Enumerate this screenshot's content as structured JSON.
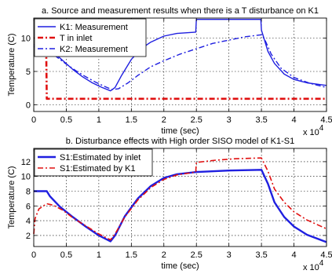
{
  "colors": {
    "blue": "#1f1fe0",
    "red": "#e01010",
    "grid": "#000000",
    "background": "#ffffff"
  },
  "chart_data": [
    {
      "type": "line",
      "title": "a. Source and measurement results when there is a T disturbance on K1",
      "xlabel": "time (sec)",
      "ylabel": "Temperature (C)",
      "x_multiplier_label": "x 10",
      "x_multiplier_exp": "4",
      "xlim": [
        0,
        4.5
      ],
      "ylim": [
        -1,
        13
      ],
      "xticks": [
        0,
        0.5,
        1,
        1.5,
        2,
        2.5,
        3,
        3.5,
        4,
        4.5
      ],
      "yticks": [
        0,
        5,
        10
      ],
      "grid": true,
      "legend": "top-left",
      "series": [
        {
          "name": "K1: Measurement",
          "color": "#1f1fe0",
          "style": "solid",
          "width": 1.4,
          "points": [
            [
              0,
              8.7
            ],
            [
              0.05,
              8.6
            ],
            [
              0.2,
              8.5
            ],
            [
              0.3,
              7.9
            ],
            [
              0.45,
              6.6
            ],
            [
              0.6,
              5.3
            ],
            [
              0.75,
              4.2
            ],
            [
              0.9,
              3.3
            ],
            [
              1.05,
              2.6
            ],
            [
              1.18,
              2.1
            ],
            [
              1.25,
              2.6
            ],
            [
              1.35,
              4.4
            ],
            [
              1.5,
              6.8
            ],
            [
              1.65,
              8.4
            ],
            [
              1.8,
              9.4
            ],
            [
              2.0,
              10.3
            ],
            [
              2.2,
              10.7
            ],
            [
              2.49,
              10.9
            ],
            [
              2.5,
              12.8
            ],
            [
              3.0,
              12.8
            ],
            [
              3.49,
              12.8
            ],
            [
              3.5,
              11.2
            ],
            [
              3.6,
              8.0
            ],
            [
              3.7,
              6.2
            ],
            [
              3.85,
              4.6
            ],
            [
              4.0,
              3.8
            ],
            [
              4.2,
              3.3
            ],
            [
              4.5,
              2.9
            ]
          ]
        },
        {
          "name": "T in inlet",
          "color": "#e01010",
          "style": "dashdot",
          "width": 2.6,
          "points": [
            [
              0,
              10
            ],
            [
              0.19,
              10
            ],
            [
              0.2,
              0.9
            ],
            [
              4.5,
              0.9
            ]
          ]
        },
        {
          "name": "K2: Measurement",
          "color": "#1f1fe0",
          "style": "dashdot",
          "width": 1.4,
          "points": [
            [
              0,
              9.0
            ],
            [
              0.1,
              8.8
            ],
            [
              0.2,
              8.3
            ],
            [
              0.35,
              7.2
            ],
            [
              0.5,
              6.1
            ],
            [
              0.65,
              5.1
            ],
            [
              0.8,
              4.2
            ],
            [
              0.95,
              3.4
            ],
            [
              1.1,
              2.7
            ],
            [
              1.2,
              2.3
            ],
            [
              1.3,
              2.4
            ],
            [
              1.45,
              3.3
            ],
            [
              1.6,
              4.4
            ],
            [
              1.8,
              5.7
            ],
            [
              2.0,
              6.6
            ],
            [
              2.25,
              7.6
            ],
            [
              2.5,
              8.4
            ],
            [
              2.75,
              9.2
            ],
            [
              3.0,
              9.7
            ],
            [
              3.25,
              10.2
            ],
            [
              3.5,
              10.5
            ],
            [
              3.55,
              9.8
            ],
            [
              3.65,
              7.6
            ],
            [
              3.8,
              5.5
            ],
            [
              4.0,
              4.1
            ],
            [
              4.25,
              3.2
            ],
            [
              4.5,
              2.6
            ]
          ]
        }
      ]
    },
    {
      "type": "line",
      "title": "b. Disturbance effects with High order SISO model of K1-S1",
      "xlabel": "time (sec)",
      "ylabel": "Temperature (C)",
      "x_multiplier_label": "x 10",
      "x_multiplier_exp": "4",
      "xlim": [
        0,
        4.5
      ],
      "ylim": [
        0.5,
        13.8
      ],
      "xticks": [
        0,
        0.5,
        1,
        1.5,
        2,
        2.5,
        3,
        3.5,
        4,
        4.5
      ],
      "yticks": [
        2,
        4,
        6,
        8,
        10,
        12
      ],
      "grid": true,
      "legend": "top-left",
      "series": [
        {
          "name": "S1:Estimated by inlet",
          "color": "#1f1fe0",
          "style": "solid",
          "width": 2.4,
          "points": [
            [
              0,
              8.0
            ],
            [
              0.2,
              8.0
            ],
            [
              0.25,
              7.3
            ],
            [
              0.4,
              5.9
            ],
            [
              0.6,
              4.5
            ],
            [
              0.8,
              3.2
            ],
            [
              1.0,
              2.0
            ],
            [
              1.18,
              1.2
            ],
            [
              1.25,
              2.0
            ],
            [
              1.4,
              4.6
            ],
            [
              1.6,
              7.0
            ],
            [
              1.8,
              8.7
            ],
            [
              2.0,
              9.8
            ],
            [
              2.2,
              10.3
            ],
            [
              2.5,
              10.6
            ],
            [
              3.0,
              10.8
            ],
            [
              3.5,
              10.9
            ],
            [
              3.6,
              9.0
            ],
            [
              3.7,
              6.5
            ],
            [
              3.85,
              4.5
            ],
            [
              4.0,
              3.2
            ],
            [
              4.2,
              2.1
            ],
            [
              4.5,
              1.1
            ]
          ]
        },
        {
          "name": "S1:Estimated by K1",
          "color": "#e01010",
          "style": "dashdot",
          "width": 1.6,
          "points": [
            [
              0,
              2.2
            ],
            [
              0.02,
              4.3
            ],
            [
              0.08,
              5.6
            ],
            [
              0.2,
              6.3
            ],
            [
              0.3,
              6.1
            ],
            [
              0.45,
              5.4
            ],
            [
              0.6,
              4.4
            ],
            [
              0.8,
              3.3
            ],
            [
              1.0,
              2.2
            ],
            [
              1.18,
              1.4
            ],
            [
              1.25,
              2.2
            ],
            [
              1.4,
              4.5
            ],
            [
              1.6,
              6.8
            ],
            [
              1.8,
              8.5
            ],
            [
              2.0,
              9.6
            ],
            [
              2.2,
              10.2
            ],
            [
              2.49,
              10.6
            ],
            [
              2.5,
              11.9
            ],
            [
              2.8,
              12.2
            ],
            [
              3.1,
              12.4
            ],
            [
              3.5,
              12.5
            ],
            [
              3.6,
              10.7
            ],
            [
              3.7,
              8.3
            ],
            [
              3.85,
              6.5
            ],
            [
              4.0,
              5.2
            ],
            [
              4.2,
              4.1
            ],
            [
              4.5,
              2.9
            ]
          ]
        }
      ]
    }
  ]
}
